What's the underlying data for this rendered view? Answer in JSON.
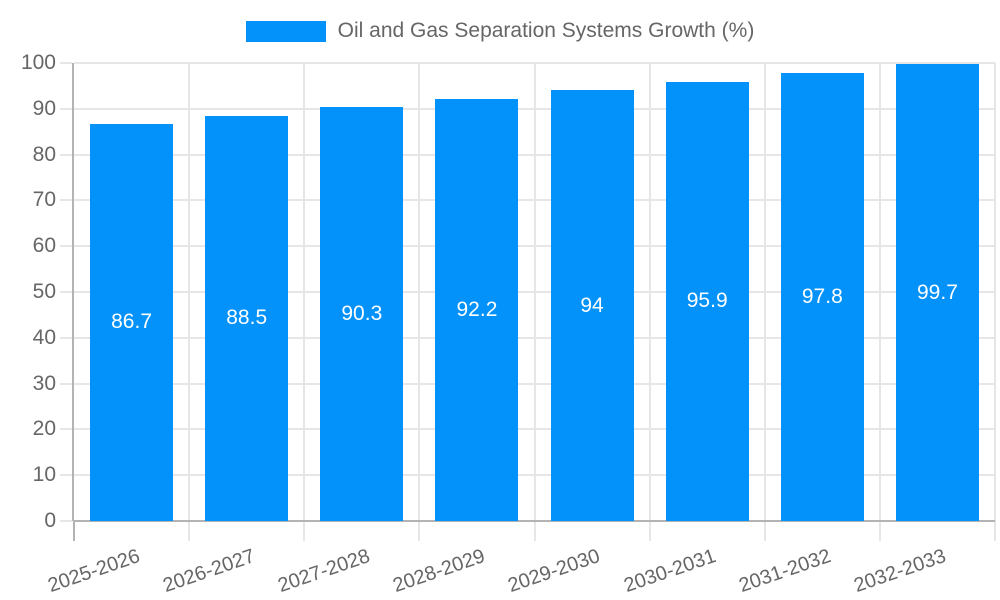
{
  "legend": {
    "swatch_color": "#0391fa"
  },
  "chart_data": {
    "type": "bar",
    "title": "Oil and Gas Separation Systems Growth (%)",
    "categories": [
      "2025-2026",
      "2026-2027",
      "2027-2028",
      "2028-2029",
      "2029-2030",
      "2030-2031",
      "2031-2032",
      "2032-2033"
    ],
    "values": [
      86.7,
      88.5,
      90.3,
      92.2,
      94,
      95.9,
      97.8,
      99.7
    ],
    "value_labels": [
      "86.7",
      "88.5",
      "90.3",
      "92.2",
      "94",
      "95.9",
      "97.8",
      "99.7"
    ],
    "xlabel": "",
    "ylabel": "",
    "ylim": [
      0,
      100
    ],
    "ytick_step": 10,
    "ytick_labels": [
      "0",
      "10",
      "20",
      "30",
      "40",
      "50",
      "60",
      "70",
      "80",
      "90",
      "100"
    ],
    "grid": true,
    "legend_position": "top",
    "bar_color": "#0391fa",
    "value_label_color": "#ffffff",
    "axis_text_color": "#666666",
    "grid_color": "#e6e6e6",
    "axis_line_color": "#b3b3b3"
  }
}
